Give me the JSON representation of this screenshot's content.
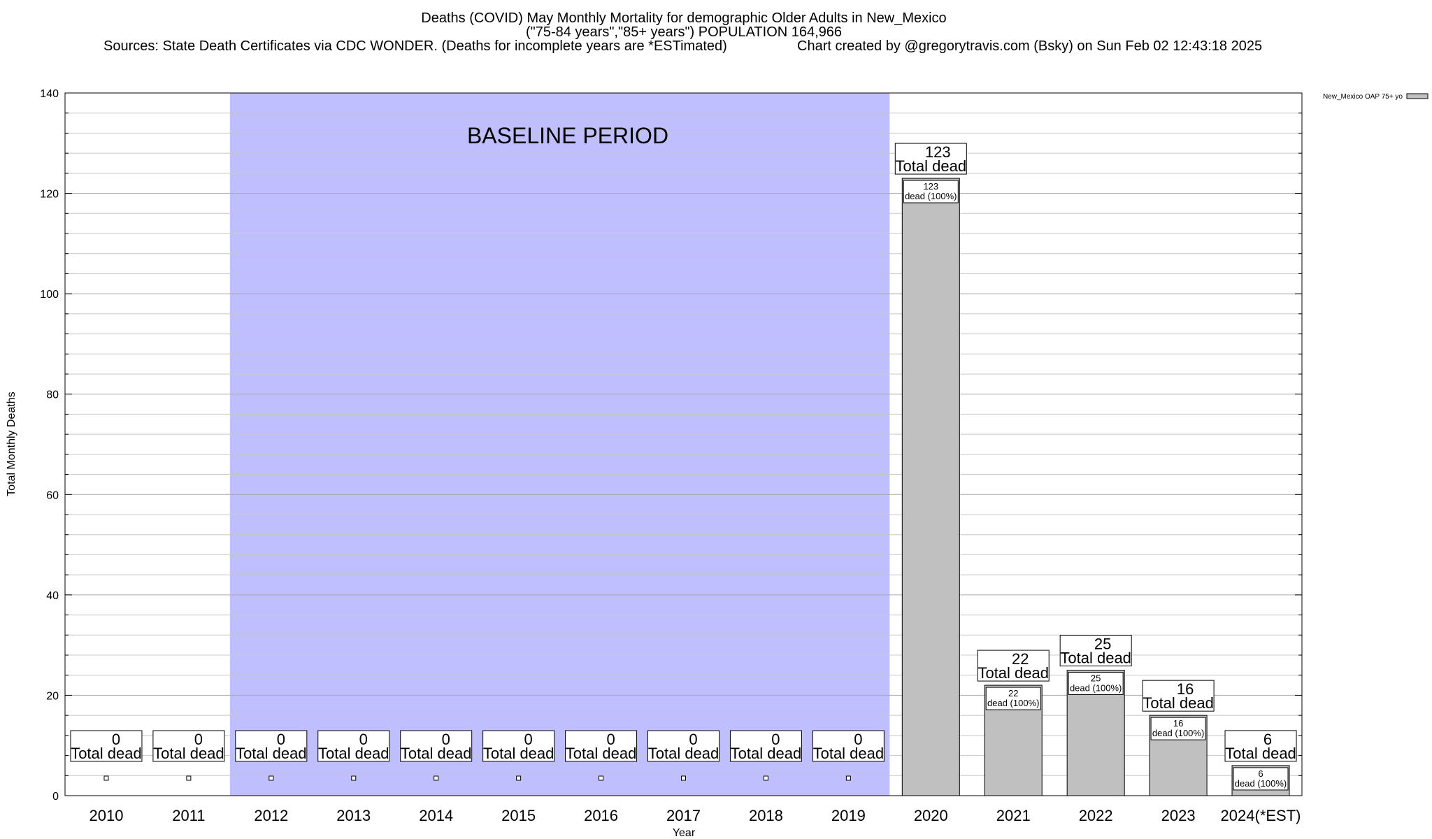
{
  "header": {
    "title_line1": "Deaths (COVID) May Monthly Mortality for demographic Older Adults in New_Mexico",
    "title_line2": "(\"75-84 years\",\"85+ years\") POPULATION 164,966",
    "sources": "Sources: State Death Certificates via CDC WONDER. (Deaths for incomplete years are *ESTimated)",
    "credit": "Chart created by @gregorytravis.com (Bsky) on Sun Feb 02 12:43:18 2025"
  },
  "chart_data": {
    "type": "bar",
    "xlabel": "Year",
    "ylabel": "Total Monthly Deaths",
    "ylim": [
      0,
      140
    ],
    "yticks": [
      0,
      20,
      40,
      60,
      80,
      100,
      120,
      140
    ],
    "grid": true,
    "categories": [
      "2010",
      "2011",
      "2012",
      "2013",
      "2014",
      "2015",
      "2016",
      "2017",
      "2018",
      "2019",
      "2020",
      "2021",
      "2022",
      "2023",
      "2024(*EST)"
    ],
    "series": [
      {
        "name": "New_Mexico OAP 75+ yo",
        "color": "#c0c0c0",
        "values": [
          0,
          0,
          0,
          0,
          0,
          0,
          0,
          0,
          0,
          0,
          123,
          22,
          25,
          16,
          6
        ]
      }
    ],
    "total_label_text": "Total dead",
    "segment_label_suffix": "dead (100%)",
    "baseline": {
      "label": "BASELINE PERIOD",
      "from": "2012",
      "to": "2019",
      "color": "#bfbfff"
    },
    "legend_position": "top-right"
  }
}
